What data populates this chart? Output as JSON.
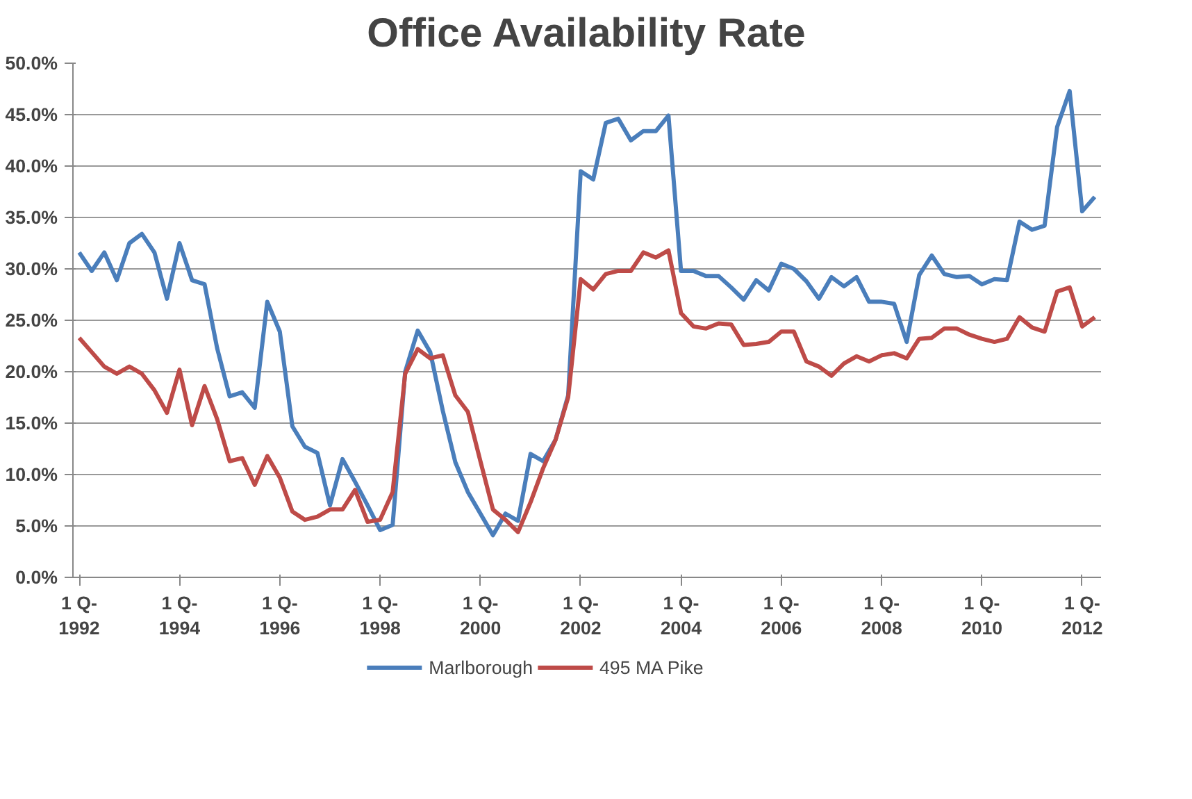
{
  "chart_data": {
    "type": "line",
    "title": "Office Availability Rate",
    "categories": [
      "1 Q-\n1992",
      null,
      null,
      null,
      null,
      null,
      null,
      null,
      "1 Q-\n1994",
      null,
      null,
      null,
      null,
      null,
      null,
      null,
      "1 Q-\n1996",
      null,
      null,
      null,
      null,
      null,
      null,
      null,
      "1 Q-\n1998",
      null,
      null,
      null,
      null,
      null,
      null,
      null,
      "1 Q-\n2000",
      null,
      null,
      null,
      null,
      null,
      null,
      null,
      "1 Q-\n2002",
      null,
      null,
      null,
      null,
      null,
      null,
      null,
      "1 Q-\n2004",
      null,
      null,
      null,
      null,
      null,
      null,
      null,
      "1 Q-\n2006",
      null,
      null,
      null,
      null,
      null,
      null,
      null,
      "1 Q-\n2008",
      null,
      null,
      null,
      null,
      null,
      null,
      null,
      "1 Q-\n2010",
      null,
      null,
      null,
      null,
      null,
      null,
      null,
      "1 Q-\n2012",
      null
    ],
    "series": [
      {
        "name": "Marlborough",
        "color": "#4a7ebb",
        "values": [
          31.6,
          29.8,
          31.6,
          28.9,
          32.5,
          33.4,
          31.6,
          27.1,
          32.5,
          28.9,
          28.5,
          22.3,
          17.6,
          18.0,
          16.5,
          26.8,
          23.9,
          14.7,
          12.7,
          12.1,
          7.0,
          11.5,
          9.3,
          7.0,
          4.6,
          5.1,
          20.0,
          24.0,
          21.9,
          16.2,
          11.2,
          8.3,
          6.2,
          4.1,
          6.2,
          5.5,
          12.0,
          11.3,
          13.4,
          17.7,
          39.5,
          38.7,
          44.2,
          44.6,
          42.5,
          43.4,
          43.4,
          44.9,
          29.8,
          29.8,
          29.3,
          29.3,
          28.2,
          27.0,
          28.9,
          27.9,
          30.5,
          30.0,
          28.8,
          27.1,
          29.2,
          28.3,
          29.2,
          26.8,
          26.8,
          26.6,
          22.9,
          29.4,
          31.3,
          29.5,
          29.2,
          29.3,
          28.5,
          29.0,
          28.9,
          34.6,
          33.8,
          34.2,
          43.8,
          47.3,
          35.6,
          37.0
        ]
      },
      {
        "name": "495 MA Pike",
        "color": "#be4b48",
        "values": [
          23.3,
          21.9,
          20.5,
          19.8,
          20.5,
          19.8,
          18.2,
          16.0,
          20.2,
          14.8,
          18.6,
          15.4,
          11.3,
          11.6,
          9.0,
          11.8,
          9.7,
          6.4,
          5.6,
          5.9,
          6.6,
          6.6,
          8.5,
          5.4,
          5.6,
          8.3,
          19.8,
          22.2,
          21.3,
          21.6,
          17.7,
          16.1,
          11.3,
          6.6,
          5.6,
          4.4,
          7.3,
          10.6,
          13.4,
          17.5,
          29.0,
          28.0,
          29.5,
          29.8,
          29.8,
          31.6,
          31.1,
          31.8,
          25.7,
          24.4,
          24.2,
          24.7,
          24.6,
          22.6,
          22.7,
          22.9,
          23.9,
          23.9,
          21.0,
          20.5,
          19.6,
          20.8,
          21.5,
          21.0,
          21.6,
          21.8,
          21.3,
          23.2,
          23.3,
          24.2,
          24.2,
          23.6,
          23.2,
          22.9,
          23.2,
          25.3,
          24.3,
          23.9,
          27.8,
          28.2,
          24.4,
          25.3
        ]
      }
    ],
    "ylim": [
      0,
      50
    ],
    "yticks": [
      {
        "value": 0,
        "label": "0.0%"
      },
      {
        "value": 5,
        "label": "5.0%"
      },
      {
        "value": 10,
        "label": "10.0%"
      },
      {
        "value": 15,
        "label": "15.0%"
      },
      {
        "value": 20,
        "label": "20.0%"
      },
      {
        "value": 25,
        "label": "25.0%"
      },
      {
        "value": 30,
        "label": "30.0%"
      },
      {
        "value": 35,
        "label": "35.0%"
      },
      {
        "value": 40,
        "label": "40.0%"
      },
      {
        "value": 45,
        "label": "45.0%"
      },
      {
        "value": 50,
        "label": "50.0%"
      }
    ],
    "grid": "y",
    "legend": "bottom",
    "marker": "none",
    "line_style": "solid"
  }
}
